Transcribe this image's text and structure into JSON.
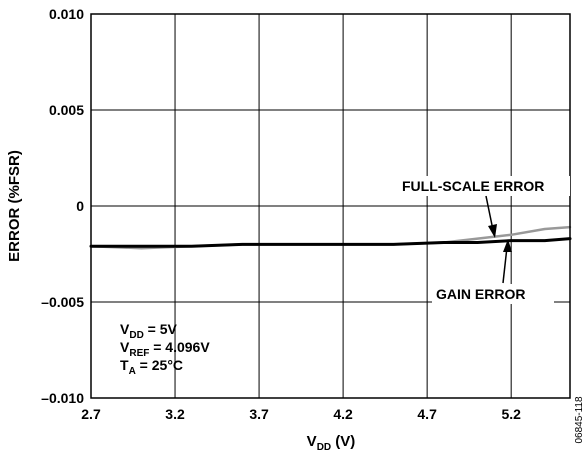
{
  "chart_data": {
    "type": "line",
    "xlabel": {
      "main": "V",
      "sub": "DD",
      "suffix": " (V)"
    },
    "ylabel": "ERROR (%FSR)",
    "xlim": [
      2.7,
      5.55
    ],
    "ylim": [
      -0.01,
      0.01
    ],
    "x_ticks": [
      2.7,
      3.2,
      3.7,
      4.2,
      4.7,
      5.2
    ],
    "x_tick_labels": [
      "2.7",
      "3.2",
      "3.7",
      "4.2",
      "4.7",
      "5.2"
    ],
    "y_ticks": [
      0.01,
      0.005,
      0,
      -0.005,
      -0.01
    ],
    "y_tick_labels": [
      "0.010",
      "0.005",
      "0",
      "–0.005",
      "–0.010"
    ],
    "grid": true,
    "series": [
      {
        "name": "FULL-SCALE ERROR",
        "color": "#999999",
        "x": [
          2.7,
          3.0,
          3.3,
          3.6,
          3.9,
          4.2,
          4.5,
          4.8,
          5.0,
          5.2,
          5.4,
          5.55
        ],
        "y": [
          -0.0021,
          -0.0022,
          -0.0021,
          -0.002,
          -0.002,
          -0.002,
          -0.002,
          -0.0019,
          -0.0017,
          -0.0015,
          -0.0012,
          -0.0011
        ]
      },
      {
        "name": "GAIN ERROR",
        "color": "#000000",
        "x": [
          2.7,
          3.0,
          3.3,
          3.6,
          3.9,
          4.2,
          4.5,
          4.8,
          5.0,
          5.2,
          5.4,
          5.55
        ],
        "y": [
          -0.0021,
          -0.0021,
          -0.0021,
          -0.002,
          -0.002,
          -0.002,
          -0.002,
          -0.0019,
          -0.0019,
          -0.0018,
          -0.0018,
          -0.0017
        ]
      }
    ],
    "annotations": {
      "full_scale_label": "FULL-SCALE ERROR",
      "gain_label": "GAIN ERROR",
      "conditions": [
        {
          "main": "V",
          "sub": "DD",
          "value": " = 5V"
        },
        {
          "main": "V",
          "sub": "REF",
          "value": " = 4.096V"
        },
        {
          "main": "T",
          "sub": "A",
          "value": " = 25°C"
        }
      ]
    },
    "figure_id": "06845-118"
  }
}
